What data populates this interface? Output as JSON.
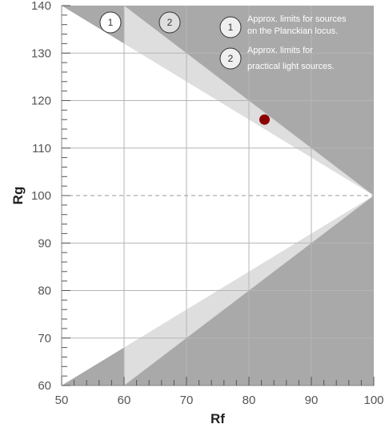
{
  "chart_data": {
    "type": "scatter",
    "xlabel": "Rf",
    "ylabel": "Rg",
    "xlim": [
      50,
      100
    ],
    "ylim": [
      60,
      140
    ],
    "x_ticks": [
      "50",
      "60",
      "70",
      "80",
      "90",
      "100"
    ],
    "y_ticks": [
      "60",
      "70",
      "80",
      "90",
      "100",
      "110",
      "120",
      "130",
      "140"
    ],
    "grid": true,
    "reference_line": {
      "y": 100,
      "style": "dashed"
    },
    "regions": [
      {
        "marker": "1",
        "note": [
          "Approx. limits for sources",
          "on the Planckian locus."
        ],
        "upper_boundary": [
          [
            50,
            140
          ],
          [
            100,
            100
          ]
        ],
        "lower_boundary": [
          [
            50,
            60
          ],
          [
            100,
            100
          ]
        ]
      },
      {
        "marker": "2",
        "note": [
          "Approx. limits for",
          "practical light sources."
        ],
        "upper_boundary": [
          [
            60,
            140
          ],
          [
            100,
            100
          ]
        ],
        "lower_boundary": [
          [
            60,
            60
          ],
          [
            100,
            100
          ]
        ]
      }
    ],
    "points": [
      {
        "x": 82.5,
        "y": 116,
        "color": "#8b0000"
      }
    ],
    "colors": {
      "outer_region": "#a9a9a9",
      "middle_band": "#dedede",
      "inner_region": "#ffffff",
      "grid": "#b5b5b5",
      "point": "#8b0000"
    }
  }
}
